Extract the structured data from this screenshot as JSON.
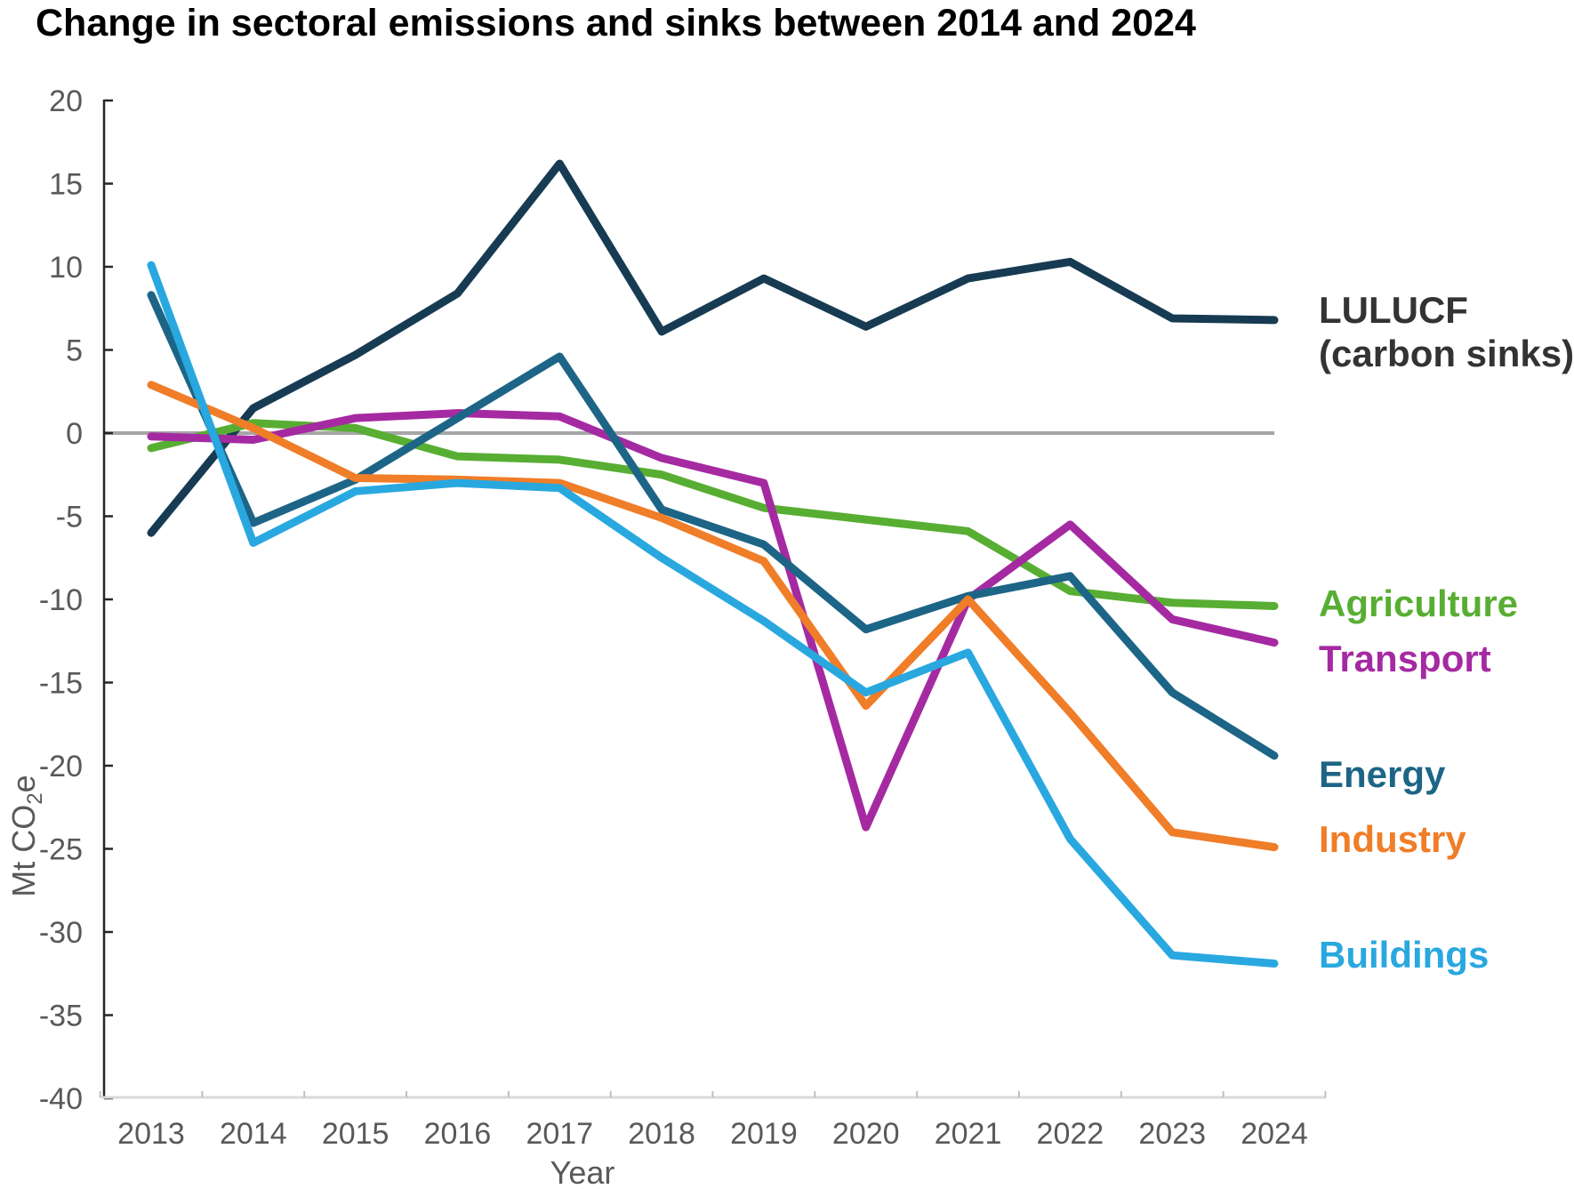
{
  "chart_data": {
    "type": "line",
    "title": "Change in sectoral emissions and sinks between 2014 and 2024",
    "xlabel": "Year",
    "ylabel": "Mt CO2e",
    "ylabel_parts": {
      "prefix": "Mt CO",
      "sub": "2",
      "suffix": "e"
    },
    "x": [
      2013,
      2014,
      2015,
      2016,
      2017,
      2018,
      2019,
      2020,
      2021,
      2022,
      2023,
      2024
    ],
    "ylim": [
      -40,
      20
    ],
    "yticks": [
      20,
      15,
      10,
      5,
      0,
      -5,
      -10,
      -15,
      -20,
      -25,
      -30,
      -35,
      -40
    ],
    "grid": false,
    "zero_line": true,
    "zero_line_color": "#A6A6A6",
    "legend_position": "right",
    "series": [
      {
        "name": "LULUCF (carbon sinks)",
        "legend_label": "LULUCF",
        "legend_sublabel": "(carbon sinks)",
        "color": "#173B52",
        "label_color": "#333333",
        "values": [
          -6.0,
          1.5,
          4.7,
          8.4,
          16.2,
          6.1,
          9.3,
          6.4,
          9.3,
          10.3,
          6.9,
          6.8
        ]
      },
      {
        "name": "Agriculture",
        "legend_label": "Agriculture",
        "color": "#58AE33",
        "values": [
          -0.9,
          0.6,
          0.3,
          -1.4,
          -1.6,
          -2.5,
          -4.5,
          -5.2,
          -5.9,
          -9.5,
          -10.2,
          -10.4
        ]
      },
      {
        "name": "Transport",
        "legend_label": "Transport",
        "color": "#A52AA2",
        "values": [
          -0.2,
          -0.4,
          0.9,
          1.2,
          1.0,
          -1.5,
          -3.0,
          -23.7,
          -10.0,
          -5.5,
          -11.2,
          -12.6
        ]
      },
      {
        "name": "Energy",
        "legend_label": "Energy",
        "color": "#1D6586",
        "values": [
          8.3,
          -5.4,
          -2.8,
          0.9,
          4.6,
          -4.6,
          -6.7,
          -11.8,
          -9.8,
          -8.6,
          -15.6,
          -19.4
        ]
      },
      {
        "name": "Industry",
        "legend_label": "Industry",
        "color": "#F07D28",
        "values": [
          2.9,
          0.3,
          -2.7,
          -2.8,
          -3.0,
          -5.1,
          -7.7,
          -16.4,
          -10.0,
          -16.8,
          -24.0,
          -24.9
        ]
      },
      {
        "name": "Buildings",
        "legend_label": "Buildings",
        "color": "#29A8E0",
        "values": [
          10.1,
          -6.6,
          -3.5,
          -3.0,
          -3.3,
          -7.5,
          -11.3,
          -15.6,
          -13.2,
          -24.4,
          -31.4,
          -31.9
        ]
      }
    ]
  }
}
